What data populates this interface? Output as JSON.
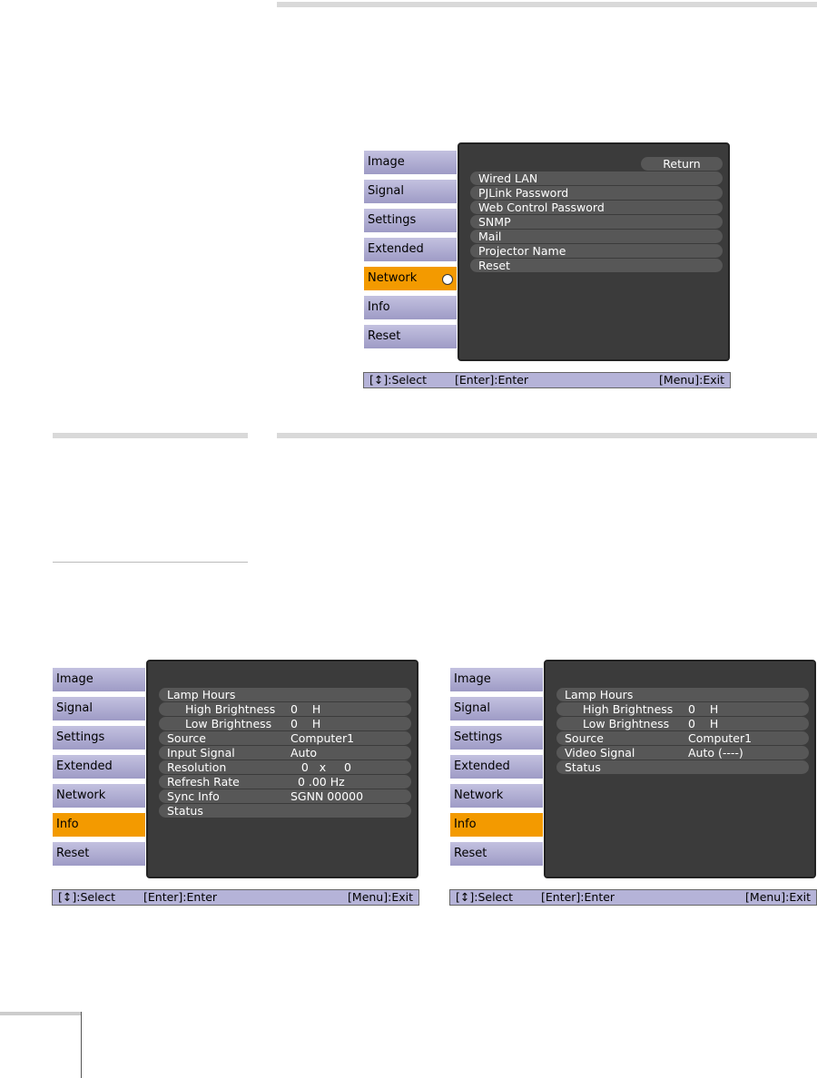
{
  "menus": [
    {
      "tabs": [
        "Image",
        "Signal",
        "Settings",
        "Extended",
        "Network",
        "Info",
        "Reset"
      ],
      "active_tab": 4,
      "return_button": "Return",
      "items": [
        {
          "label": "Wired LAN"
        },
        {
          "label": "PJLink Password"
        },
        {
          "label": "Web Control Password"
        },
        {
          "label": "SNMP"
        },
        {
          "label": "Mail"
        },
        {
          "label": "Projector Name"
        },
        {
          "label": "Reset"
        }
      ],
      "footer": {
        "select": "[↕]:Select",
        "enter": "[Enter]:Enter",
        "exit": "[Menu]:Exit"
      }
    },
    {
      "tabs": [
        "Image",
        "Signal",
        "Settings",
        "Extended",
        "Network",
        "Info",
        "Reset"
      ],
      "active_tab": 5,
      "items": [
        {
          "label": "Lamp Hours",
          "children": [
            {
              "label": "High Brightness",
              "value": "0    H"
            },
            {
              "label": "Low Brightness",
              "value": "0    H"
            }
          ]
        },
        {
          "label": "Source",
          "value": "Computer1"
        },
        {
          "label": "Input Signal",
          "value": "Auto"
        },
        {
          "label": "Resolution",
          "value": "   0   x     0"
        },
        {
          "label": "Refresh Rate",
          "value": "  0 .00 Hz"
        },
        {
          "label": "Sync Info",
          "value": "SGNN 00000"
        },
        {
          "label": "Status"
        }
      ],
      "footer": {
        "select": "[↕]:Select",
        "enter": "[Enter]:Enter",
        "exit": "[Menu]:Exit"
      }
    },
    {
      "tabs": [
        "Image",
        "Signal",
        "Settings",
        "Extended",
        "Network",
        "Info",
        "Reset"
      ],
      "active_tab": 5,
      "items": [
        {
          "label": "Lamp Hours",
          "children": [
            {
              "label": "High Brightness",
              "value": "0    H"
            },
            {
              "label": "Low Brightness",
              "value": "0    H"
            }
          ]
        },
        {
          "label": "Source",
          "value": "Computer1"
        },
        {
          "label": "Video Signal",
          "value": "Auto (----)"
        },
        {
          "label": "Status"
        }
      ],
      "footer": {
        "select": "[↕]:Select",
        "enter": "[Enter]:Enter",
        "exit": "[Menu]:Exit"
      }
    }
  ]
}
